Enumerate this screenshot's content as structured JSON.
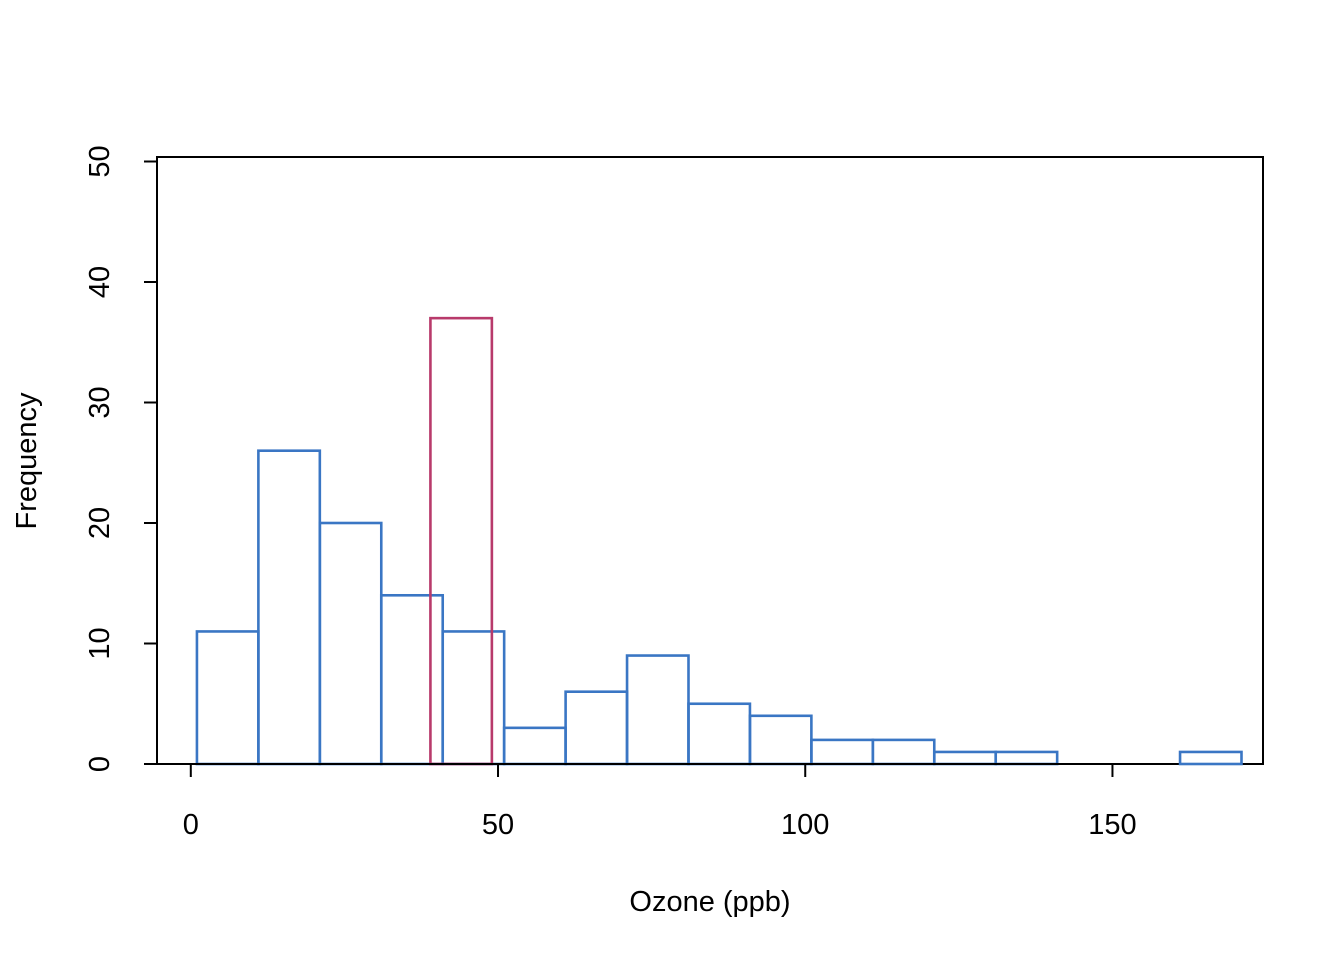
{
  "chart_data": {
    "type": "bar",
    "xlabel": "Ozone (ppb)",
    "ylabel": "Frequency",
    "xlim": [
      -5.5,
      174.5
    ],
    "ylim": [
      0,
      50
    ],
    "xticks": [
      0,
      50,
      100,
      150
    ],
    "yticks": [
      0,
      10,
      20,
      30,
      40,
      50
    ],
    "grid": false,
    "legend": "none",
    "series": [
      {
        "color": "#3A76C4",
        "bins": [
          {
            "x0": 1,
            "x1": 11,
            "count": 11
          },
          {
            "x0": 11,
            "x1": 21,
            "count": 26
          },
          {
            "x0": 21,
            "x1": 31,
            "count": 20
          },
          {
            "x0": 31,
            "x1": 41,
            "count": 14
          },
          {
            "x0": 41,
            "x1": 51,
            "count": 11
          },
          {
            "x0": 51,
            "x1": 61,
            "count": 3
          },
          {
            "x0": 61,
            "x1": 71,
            "count": 6
          },
          {
            "x0": 71,
            "x1": 81,
            "count": 9
          },
          {
            "x0": 81,
            "x1": 91,
            "count": 5
          },
          {
            "x0": 91,
            "x1": 101,
            "count": 4
          },
          {
            "x0": 101,
            "x1": 111,
            "count": 2
          },
          {
            "x0": 111,
            "x1": 121,
            "count": 2
          },
          {
            "x0": 121,
            "x1": 131,
            "count": 1
          },
          {
            "x0": 131,
            "x1": 141,
            "count": 1
          },
          {
            "x0": 141,
            "x1": 151,
            "count": 0
          },
          {
            "x0": 151,
            "x1": 161,
            "count": 0
          },
          {
            "x0": 161,
            "x1": 171,
            "count": 1
          }
        ]
      },
      {
        "color": "#B83A6B",
        "bins": [
          {
            "x0": 39,
            "x1": 49,
            "count": 37
          }
        ]
      }
    ]
  }
}
